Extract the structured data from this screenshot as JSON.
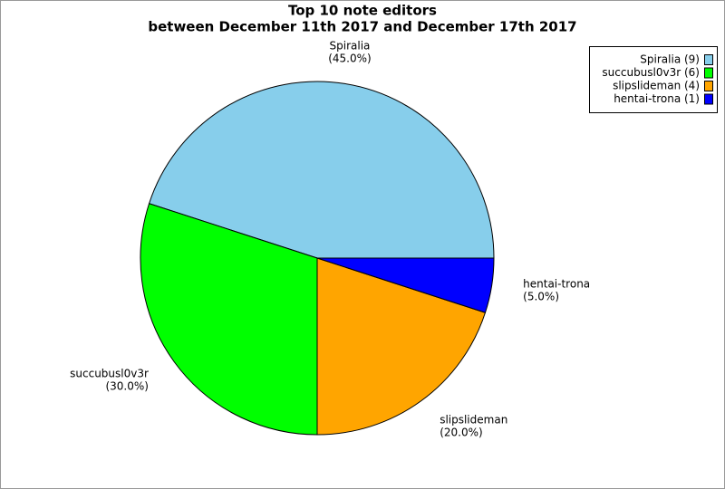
{
  "chart_data": {
    "type": "pie",
    "title": "Top 10 note editors",
    "subtitle": "between December 11th 2017 and December 17th 2017",
    "categories": [
      "Spiralia",
      "succubusl0v3r",
      "slipslideman",
      "hentai-trona"
    ],
    "values": [
      45,
      30,
      20,
      5
    ],
    "value_labels": [
      "(45.0%)",
      "(30.0%)",
      "(20.0%)",
      "(5.0%)"
    ],
    "legend_labels": [
      "Spiralia (9)",
      "succubusl0v3r (6)",
      "slipslideman (4)",
      "hentai-trona (1)"
    ],
    "colors": [
      "#87ceeb",
      "#00ff00",
      "#ffa500",
      "#0000ff"
    ],
    "legend": "top-right"
  }
}
